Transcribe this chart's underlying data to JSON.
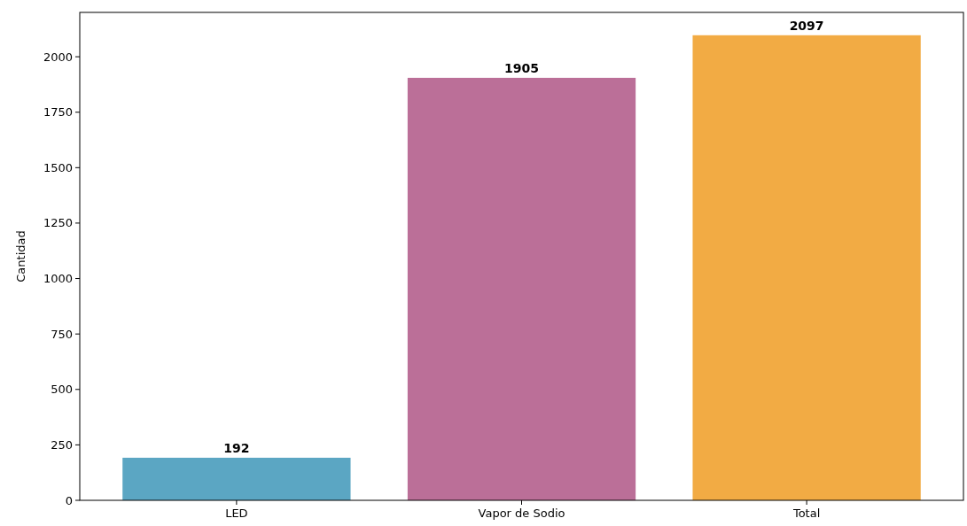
{
  "chart_data": {
    "type": "bar",
    "ylabel": "Cantidad",
    "categories": [
      "LED",
      "Vapor de Sodio",
      "Total"
    ],
    "values": [
      192,
      1905,
      2097
    ],
    "colors": [
      "#5ba6c3",
      "#bb6f98",
      "#f2ab44"
    ],
    "ylim": [
      0,
      2200
    ],
    "yticks": [
      0,
      250,
      500,
      750,
      1000,
      1250,
      1500,
      1750,
      2000
    ],
    "data_labels": true
  }
}
